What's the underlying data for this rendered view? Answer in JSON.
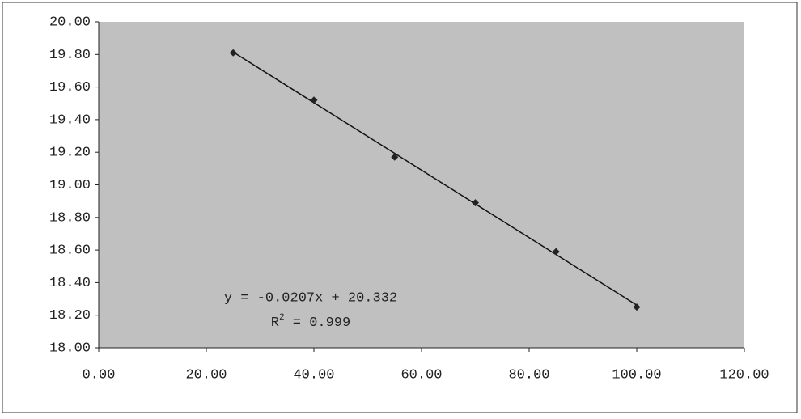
{
  "chart_data": {
    "type": "scatter",
    "x": [
      25,
      40,
      55,
      70,
      85,
      100
    ],
    "series": [
      {
        "color": "#222222",
        "values": [
          19.81,
          19.52,
          19.17,
          18.89,
          18.59,
          18.25
        ]
      }
    ],
    "xlim": [
      0,
      120
    ],
    "xticks": [
      {
        "value": 0,
        "label": "0.00"
      },
      {
        "value": 20,
        "label": "20.00"
      },
      {
        "value": 40,
        "label": "40.00"
      },
      {
        "value": 60,
        "label": "60.00"
      },
      {
        "value": 80,
        "label": "80.00"
      },
      {
        "value": 100,
        "label": "100.00"
      },
      {
        "value": 120,
        "label": "120.00"
      }
    ],
    "ylim": [
      18,
      20
    ],
    "yticks": [
      {
        "value": 18,
        "label": "18.00"
      },
      {
        "value": 18.2,
        "label": "18.20"
      },
      {
        "value": 18.4,
        "label": "18.40"
      },
      {
        "value": 18.6,
        "label": "18.60"
      },
      {
        "value": 18.8,
        "label": "18.80"
      },
      {
        "value": 19,
        "label": "19.00"
      },
      {
        "value": 19.2,
        "label": "19.20"
      },
      {
        "value": 19.4,
        "label": "19.40"
      },
      {
        "value": 19.6,
        "label": "19.60"
      },
      {
        "value": 19.8,
        "label": "19.80"
      },
      {
        "value": 20,
        "label": "20.00"
      }
    ],
    "plot_background": "#c0c0c0",
    "trendline": {
      "slope": -0.0207,
      "intercept": 20.332,
      "color": "#111111",
      "equation": "y = -0.0207x + 20.332",
      "r2_symbol": "R",
      "r2_power": "2",
      "r2_rest": " = 0.999"
    }
  }
}
